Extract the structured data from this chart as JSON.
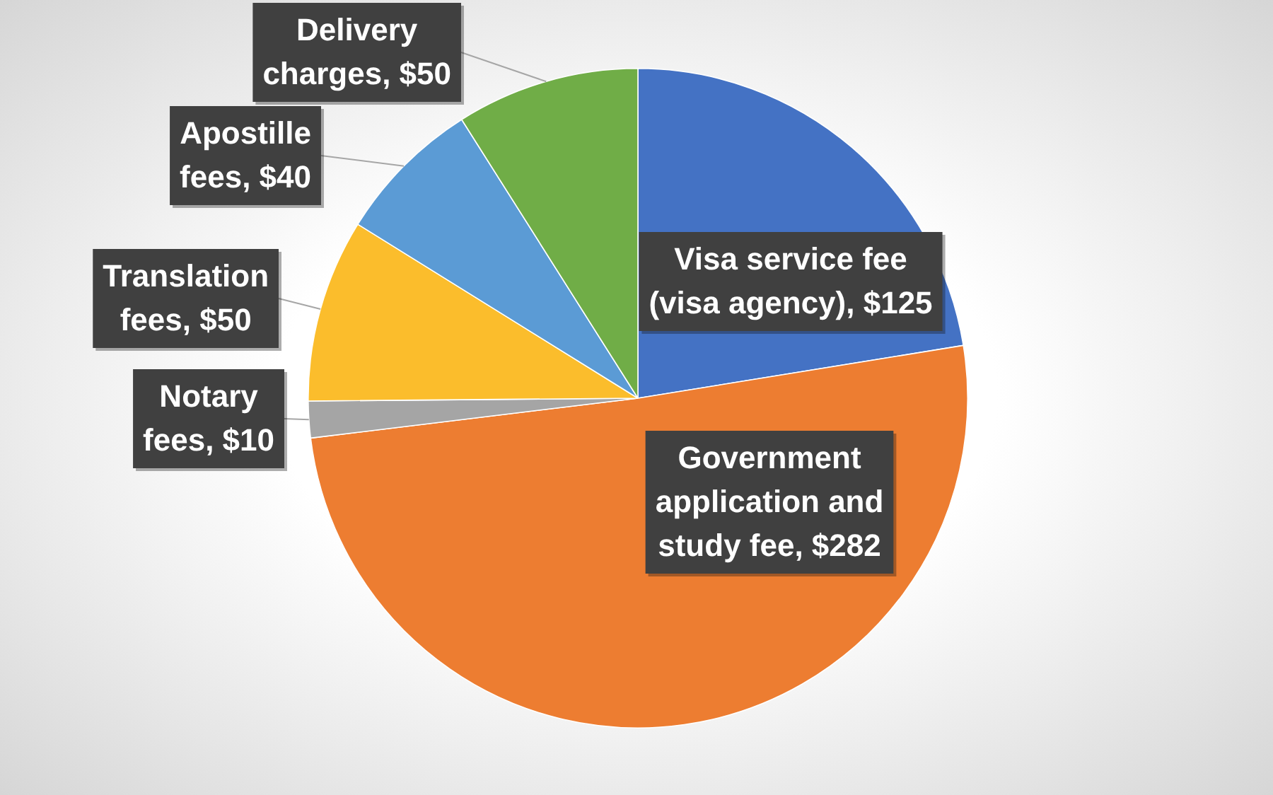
{
  "chart_data": {
    "type": "pie",
    "categories": [
      "Visa service fee (visa agency)",
      "Government application and study fee",
      "Notary fees",
      "Translation fees",
      "Apostille fees",
      "Delivery charges"
    ],
    "values": [
      125,
      282,
      10,
      50,
      40,
      50
    ],
    "colors": [
      "#4472c4",
      "#ed7d31",
      "#a5a5a5",
      "#fbbd2c",
      "#5b9bd5",
      "#70ad47"
    ],
    "value_labels": [
      "$125",
      "$282",
      "$10",
      "$50",
      "$40",
      "$50"
    ]
  }
}
